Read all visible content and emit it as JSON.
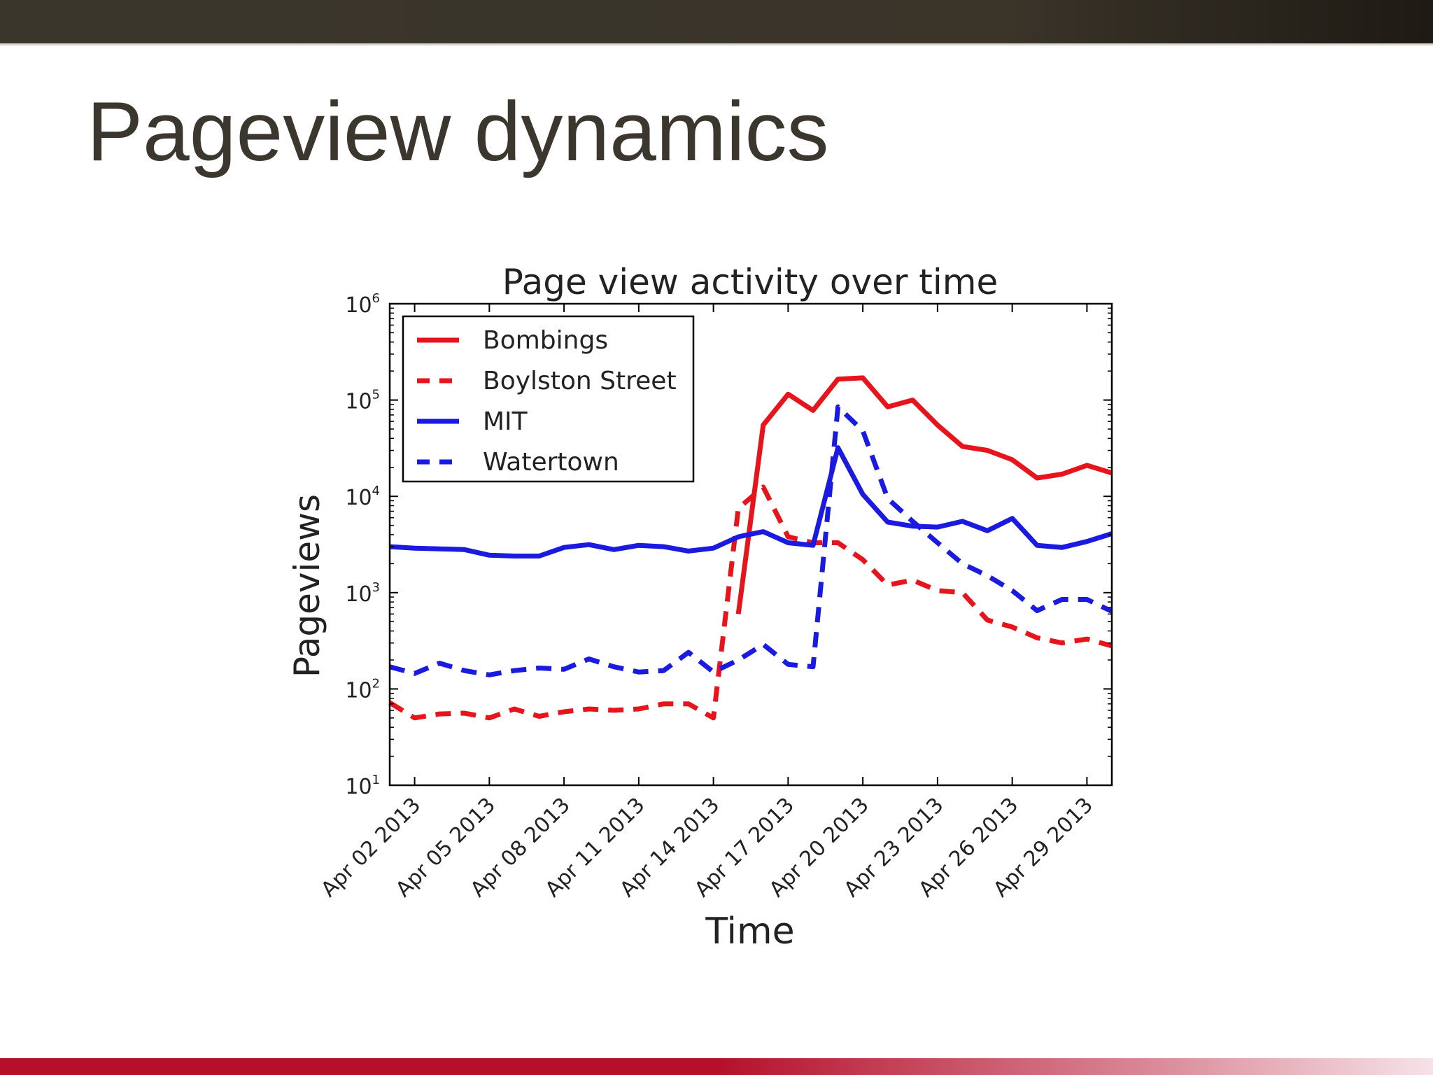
{
  "slide": {
    "title": "Pageview dynamics",
    "colors": {
      "top_bar": "#3b362c",
      "bottom_bar": "#b5102a",
      "title_text": "#3c372e"
    }
  },
  "chart_data": {
    "type": "line",
    "title": "Page view activity over time",
    "xlabel": "Time",
    "ylabel": "Pageviews",
    "yscale": "log",
    "ylim": [
      10,
      1000000
    ],
    "yticks": [
      {
        "value": 10,
        "base": "10",
        "exp": "1"
      },
      {
        "value": 100,
        "base": "10",
        "exp": "2"
      },
      {
        "value": 1000,
        "base": "10",
        "exp": "3"
      },
      {
        "value": 10000,
        "base": "10",
        "exp": "4"
      },
      {
        "value": 100000,
        "base": "10",
        "exp": "5"
      },
      {
        "value": 1000000,
        "base": "10",
        "exp": "6"
      }
    ],
    "xlim": [
      "2013-04-01",
      "2013-04-30"
    ],
    "xticks": [
      {
        "date": "2013-04-02",
        "label": "Apr 02 2013"
      },
      {
        "date": "2013-04-05",
        "label": "Apr 05 2013"
      },
      {
        "date": "2013-04-08",
        "label": "Apr 08 2013"
      },
      {
        "date": "2013-04-11",
        "label": "Apr 11 2013"
      },
      {
        "date": "2013-04-14",
        "label": "Apr 14 2013"
      },
      {
        "date": "2013-04-17",
        "label": "Apr 17 2013"
      },
      {
        "date": "2013-04-20",
        "label": "Apr 20 2013"
      },
      {
        "date": "2013-04-23",
        "label": "Apr 23 2013"
      },
      {
        "date": "2013-04-26",
        "label": "Apr 26 2013"
      },
      {
        "date": "2013-04-29",
        "label": "Apr 29 2013"
      }
    ],
    "grid": false,
    "legend_position": "top-left",
    "series": [
      {
        "name": "Bombings",
        "color": "#e8141c",
        "dash": "solid",
        "points": [
          [
            "2013-04-15",
            600
          ],
          [
            "2013-04-16",
            55000
          ],
          [
            "2013-04-17",
            115000
          ],
          [
            "2013-04-18",
            78000
          ],
          [
            "2013-04-19",
            165000
          ],
          [
            "2013-04-20",
            170000
          ],
          [
            "2013-04-21",
            85000
          ],
          [
            "2013-04-22",
            100000
          ],
          [
            "2013-04-23",
            55000
          ],
          [
            "2013-04-24",
            33000
          ],
          [
            "2013-04-25",
            30000
          ],
          [
            "2013-04-26",
            24000
          ],
          [
            "2013-04-27",
            15500
          ],
          [
            "2013-04-28",
            17000
          ],
          [
            "2013-04-29",
            21000
          ],
          [
            "2013-04-30",
            17500
          ]
        ]
      },
      {
        "name": "Boylston Street",
        "color": "#e8141c",
        "dash": "dashed",
        "points": [
          [
            "2013-04-01",
            72
          ],
          [
            "2013-04-02",
            50
          ],
          [
            "2013-04-03",
            55
          ],
          [
            "2013-04-04",
            56
          ],
          [
            "2013-04-05",
            50
          ],
          [
            "2013-04-06",
            62
          ],
          [
            "2013-04-07",
            52
          ],
          [
            "2013-04-08",
            58
          ],
          [
            "2013-04-09",
            62
          ],
          [
            "2013-04-10",
            60
          ],
          [
            "2013-04-11",
            62
          ],
          [
            "2013-04-12",
            70
          ],
          [
            "2013-04-13",
            70
          ],
          [
            "2013-04-14",
            50
          ],
          [
            "2013-04-15",
            7500
          ],
          [
            "2013-04-16",
            12500
          ],
          [
            "2013-04-17",
            3800
          ],
          [
            "2013-04-18",
            3300
          ],
          [
            "2013-04-19",
            3300
          ],
          [
            "2013-04-20",
            2200
          ],
          [
            "2013-04-21",
            1200
          ],
          [
            "2013-04-22",
            1350
          ],
          [
            "2013-04-23",
            1050
          ],
          [
            "2013-04-24",
            1000
          ],
          [
            "2013-04-25",
            520
          ],
          [
            "2013-04-26",
            440
          ],
          [
            "2013-04-27",
            340
          ],
          [
            "2013-04-28",
            300
          ],
          [
            "2013-04-29",
            330
          ],
          [
            "2013-04-30",
            280
          ]
        ]
      },
      {
        "name": "MIT",
        "color": "#1a1ae0",
        "dash": "solid",
        "points": [
          [
            "2013-04-01",
            3000
          ],
          [
            "2013-04-02",
            2900
          ],
          [
            "2013-04-03",
            2850
          ],
          [
            "2013-04-04",
            2800
          ],
          [
            "2013-04-05",
            2450
          ],
          [
            "2013-04-06",
            2400
          ],
          [
            "2013-04-07",
            2400
          ],
          [
            "2013-04-08",
            2950
          ],
          [
            "2013-04-09",
            3150
          ],
          [
            "2013-04-10",
            2800
          ],
          [
            "2013-04-11",
            3100
          ],
          [
            "2013-04-12",
            3000
          ],
          [
            "2013-04-13",
            2700
          ],
          [
            "2013-04-14",
            2900
          ],
          [
            "2013-04-15",
            3800
          ],
          [
            "2013-04-16",
            4300
          ],
          [
            "2013-04-17",
            3300
          ],
          [
            "2013-04-18",
            3100
          ],
          [
            "2013-04-19",
            32000
          ],
          [
            "2013-04-20",
            10500
          ],
          [
            "2013-04-21",
            5400
          ],
          [
            "2013-04-22",
            4900
          ],
          [
            "2013-04-23",
            4800
          ],
          [
            "2013-04-24",
            5500
          ],
          [
            "2013-04-25",
            4400
          ],
          [
            "2013-04-26",
            5900
          ],
          [
            "2013-04-27",
            3100
          ],
          [
            "2013-04-28",
            2950
          ],
          [
            "2013-04-29",
            3400
          ],
          [
            "2013-04-30",
            4100
          ]
        ]
      },
      {
        "name": "Watertown",
        "color": "#1a1ae0",
        "dash": "dashed",
        "points": [
          [
            "2013-04-01",
            170
          ],
          [
            "2013-04-02",
            145
          ],
          [
            "2013-04-03",
            185
          ],
          [
            "2013-04-04",
            155
          ],
          [
            "2013-04-05",
            140
          ],
          [
            "2013-04-06",
            155
          ],
          [
            "2013-04-07",
            165
          ],
          [
            "2013-04-08",
            160
          ],
          [
            "2013-04-09",
            205
          ],
          [
            "2013-04-10",
            170
          ],
          [
            "2013-04-11",
            150
          ],
          [
            "2013-04-12",
            155
          ],
          [
            "2013-04-13",
            240
          ],
          [
            "2013-04-14",
            150
          ],
          [
            "2013-04-15",
            200
          ],
          [
            "2013-04-16",
            290
          ],
          [
            "2013-04-17",
            180
          ],
          [
            "2013-04-18",
            170
          ],
          [
            "2013-04-19",
            85000
          ],
          [
            "2013-04-20",
            48000
          ],
          [
            "2013-04-21",
            9500
          ],
          [
            "2013-04-22",
            5500
          ],
          [
            "2013-04-23",
            3300
          ],
          [
            "2013-04-24",
            2000
          ],
          [
            "2013-04-25",
            1500
          ],
          [
            "2013-04-26",
            1050
          ],
          [
            "2013-04-27",
            650
          ],
          [
            "2013-04-28",
            850
          ],
          [
            "2013-04-29",
            850
          ],
          [
            "2013-04-30",
            640
          ]
        ]
      }
    ]
  }
}
